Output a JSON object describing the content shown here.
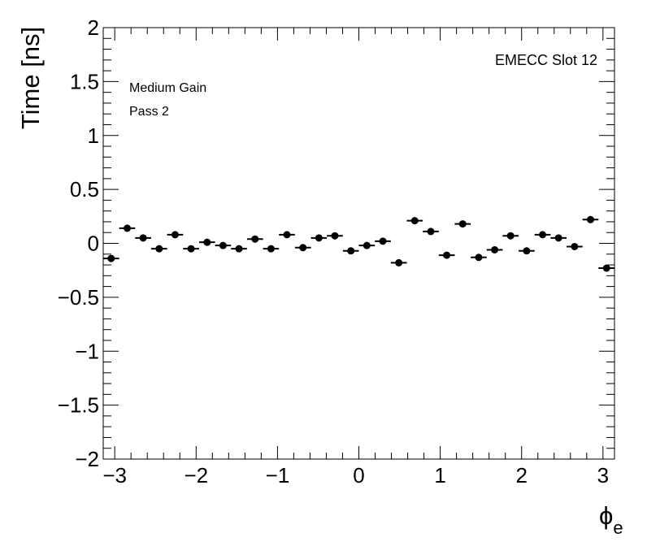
{
  "chart_data": {
    "type": "scatter",
    "title": "",
    "ylabel": "Time [ns]",
    "xlabel": {
      "symbol": "ϕ",
      "subscript": "e"
    },
    "xlim": [
      -3.1416,
      3.1416
    ],
    "ylim": [
      -2,
      2
    ],
    "x_ticks": [
      -3,
      -2,
      -1,
      0,
      1,
      2,
      3
    ],
    "x_tick_labels": [
      "−3",
      "−2",
      "−1",
      "0",
      "1",
      "2",
      "3"
    ],
    "y_ticks": [
      -2,
      -1.5,
      -1,
      -0.5,
      0,
      0.5,
      1,
      1.5,
      2
    ],
    "y_tick_labels": [
      "−2",
      "−1.5",
      "−1",
      "−0.5",
      "0",
      "0.5",
      "1",
      "1.5",
      "2"
    ],
    "annotations": [
      "EMECC Slot 12",
      "Medium Gain",
      "Pass 2"
    ],
    "grid": false,
    "bin_width": 0.19635,
    "series": [
      {
        "x": [
          -3.044,
          -2.847,
          -2.651,
          -2.454,
          -2.258,
          -2.062,
          -1.865,
          -1.669,
          -1.473,
          -1.276,
          -1.08,
          -0.884,
          -0.687,
          -0.491,
          -0.295,
          -0.098,
          0.098,
          0.295,
          0.491,
          0.687,
          0.884,
          1.08,
          1.276,
          1.473,
          1.669,
          1.865,
          2.062,
          2.258,
          2.454,
          2.651,
          2.847,
          3.044
        ],
        "y": [
          -0.14,
          0.14,
          0.05,
          -0.05,
          0.08,
          -0.05,
          0.01,
          -0.02,
          -0.05,
          0.04,
          -0.05,
          0.08,
          -0.04,
          0.05,
          0.07,
          -0.07,
          -0.02,
          0.02,
          -0.18,
          0.21,
          0.11,
          -0.11,
          0.18,
          -0.13,
          -0.06,
          0.07,
          -0.07,
          0.08,
          0.05,
          -0.03,
          0.22,
          -0.23
        ]
      }
    ]
  }
}
